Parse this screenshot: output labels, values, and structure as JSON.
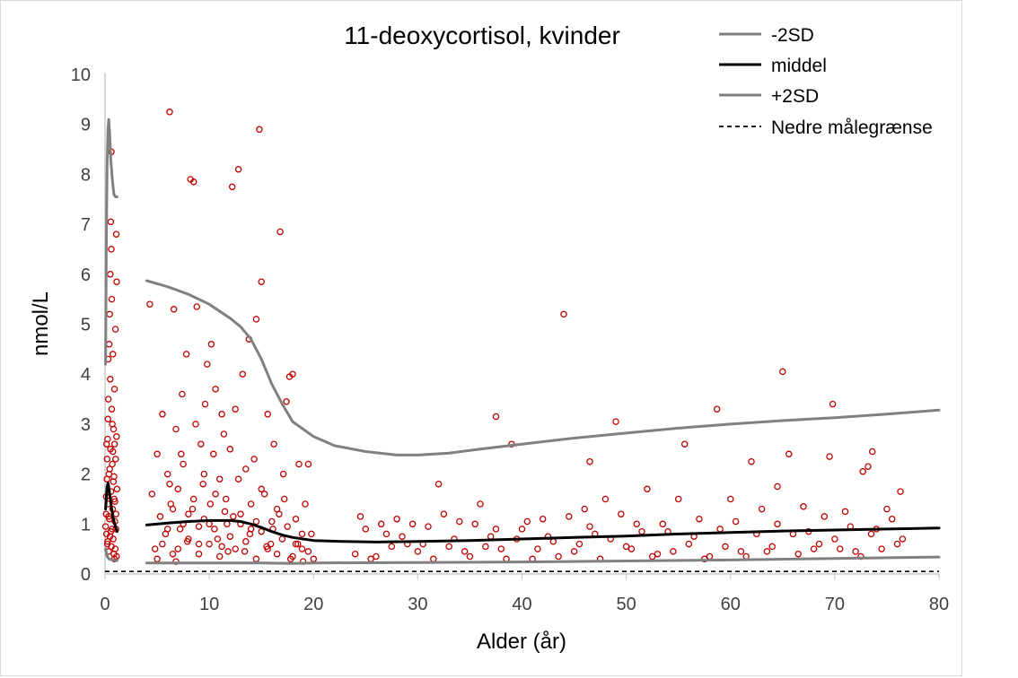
{
  "chart_data": {
    "type": "scatter",
    "title": "11-deoxycortisol, kvinder",
    "xlabel": "Alder (år)",
    "ylabel": "nmol/L",
    "xlim": [
      0,
      80
    ],
    "ylim": [
      0,
      10
    ],
    "x_ticks": [
      0,
      10,
      20,
      30,
      40,
      50,
      60,
      70,
      80
    ],
    "y_ticks": [
      0,
      1,
      2,
      3,
      4,
      5,
      6,
      7,
      8,
      9,
      10
    ],
    "legend": [
      {
        "name": "-2SD",
        "style": "solid",
        "color": "#808080"
      },
      {
        "name": "middel",
        "style": "solid",
        "color": "#000000"
      },
      {
        "name": "+2SD",
        "style": "solid",
        "color": "#808080"
      },
      {
        "name": "Nedre målegrænse",
        "style": "dashed",
        "color": "#000000"
      }
    ],
    "lines": {
      "upper_infant": [
        [
          0.05,
          4.2
        ],
        [
          0.12,
          6.5
        ],
        [
          0.2,
          8.2
        ],
        [
          0.28,
          8.9
        ],
        [
          0.35,
          9.1
        ],
        [
          0.45,
          8.8
        ],
        [
          0.55,
          8.3
        ],
        [
          0.7,
          7.9
        ],
        [
          0.85,
          7.6
        ],
        [
          1.0,
          7.55
        ],
        [
          1.15,
          7.55
        ]
      ],
      "upper_main": [
        [
          4,
          5.87
        ],
        [
          6,
          5.75
        ],
        [
          8,
          5.6
        ],
        [
          10,
          5.4
        ],
        [
          12,
          5.12
        ],
        [
          13,
          4.95
        ],
        [
          14,
          4.7
        ],
        [
          15,
          4.3
        ],
        [
          16,
          3.8
        ],
        [
          17,
          3.4
        ],
        [
          18,
          3.05
        ],
        [
          20,
          2.75
        ],
        [
          22,
          2.57
        ],
        [
          25,
          2.45
        ],
        [
          28,
          2.38
        ],
        [
          30,
          2.38
        ],
        [
          33,
          2.42
        ],
        [
          36,
          2.5
        ],
        [
          40,
          2.6
        ],
        [
          45,
          2.72
        ],
        [
          50,
          2.82
        ],
        [
          55,
          2.92
        ],
        [
          60,
          3.0
        ],
        [
          65,
          3.07
        ],
        [
          70,
          3.13
        ],
        [
          75,
          3.2
        ],
        [
          80,
          3.28
        ]
      ],
      "middle_infant": [
        [
          0.05,
          1.3
        ],
        [
          0.2,
          1.75
        ],
        [
          0.3,
          1.82
        ],
        [
          0.45,
          1.6
        ],
        [
          0.6,
          1.35
        ],
        [
          0.8,
          1.1
        ],
        [
          1.0,
          0.95
        ],
        [
          1.15,
          0.85
        ]
      ],
      "middle_main": [
        [
          4,
          0.98
        ],
        [
          6,
          1.02
        ],
        [
          8,
          1.05
        ],
        [
          10,
          1.07
        ],
        [
          12,
          1.07
        ],
        [
          13,
          1.05
        ],
        [
          14,
          1.0
        ],
        [
          15,
          0.93
        ],
        [
          16,
          0.85
        ],
        [
          17,
          0.78
        ],
        [
          18,
          0.73
        ],
        [
          20,
          0.67
        ],
        [
          23,
          0.65
        ],
        [
          26,
          0.64
        ],
        [
          30,
          0.65
        ],
        [
          35,
          0.67
        ],
        [
          40,
          0.7
        ],
        [
          45,
          0.73
        ],
        [
          50,
          0.76
        ],
        [
          55,
          0.8
        ],
        [
          60,
          0.83
        ],
        [
          65,
          0.86
        ],
        [
          70,
          0.88
        ],
        [
          75,
          0.9
        ],
        [
          80,
          0.92
        ]
      ],
      "lower_infant": [
        [
          0.05,
          0.5
        ],
        [
          0.2,
          0.35
        ],
        [
          0.4,
          0.3
        ],
        [
          0.7,
          0.28
        ],
        [
          1.0,
          0.27
        ],
        [
          1.15,
          0.27
        ]
      ],
      "lower_main": [
        [
          4,
          0.22
        ],
        [
          10,
          0.22
        ],
        [
          15,
          0.22
        ],
        [
          18,
          0.21
        ],
        [
          20,
          0.22
        ],
        [
          30,
          0.23
        ],
        [
          40,
          0.24
        ],
        [
          50,
          0.26
        ],
        [
          60,
          0.28
        ],
        [
          70,
          0.31
        ],
        [
          80,
          0.34
        ]
      ],
      "detection_limit": 0.05
    },
    "points": [
      [
        0.05,
        0.95
      ],
      [
        0.1,
        1.2
      ],
      [
        0.12,
        1.55
      ],
      [
        0.15,
        0.8
      ],
      [
        0.18,
        1.9
      ],
      [
        0.2,
        2.3
      ],
      [
        0.22,
        0.6
      ],
      [
        0.25,
        2.7
      ],
      [
        0.28,
        3.1
      ],
      [
        0.3,
        1.4
      ],
      [
        0.32,
        3.5
      ],
      [
        0.35,
        0.45
      ],
      [
        0.38,
        2.0
      ],
      [
        0.4,
        4.6
      ],
      [
        0.42,
        1.1
      ],
      [
        0.45,
        5.2
      ],
      [
        0.48,
        0.75
      ],
      [
        0.5,
        6.0
      ],
      [
        0.52,
        2.5
      ],
      [
        0.55,
        7.05
      ],
      [
        0.58,
        1.65
      ],
      [
        0.6,
        8.45
      ],
      [
        0.62,
        0.55
      ],
      [
        0.65,
        3.3
      ],
      [
        0.68,
        0.9
      ],
      [
        0.7,
        2.2
      ],
      [
        0.72,
        1.3
      ],
      [
        0.75,
        4.4
      ],
      [
        0.78,
        0.7
      ],
      [
        0.8,
        1.85
      ],
      [
        0.82,
        2.9
      ],
      [
        0.85,
        0.4
      ],
      [
        0.88,
        1.5
      ],
      [
        0.9,
        3.7
      ],
      [
        0.92,
        2.6
      ],
      [
        0.95,
        1.05
      ],
      [
        0.98,
        0.5
      ],
      [
        1.0,
        4.9
      ],
      [
        1.02,
        2.3
      ],
      [
        1.05,
        1.2
      ],
      [
        1.08,
        6.8
      ],
      [
        1.1,
        0.35
      ],
      [
        1.12,
        5.85
      ],
      [
        1.15,
        1.7
      ],
      [
        0.15,
        2.6
      ],
      [
        0.35,
        1.15
      ],
      [
        0.55,
        0.85
      ],
      [
        0.75,
        2.45
      ],
      [
        0.95,
        1.45
      ],
      [
        0.3,
        4.3
      ],
      [
        0.5,
        3.9
      ],
      [
        0.7,
        3.0
      ],
      [
        0.9,
        0.3
      ],
      [
        1.1,
        2.75
      ],
      [
        0.25,
        0.65
      ],
      [
        0.45,
        2.1
      ],
      [
        0.65,
        5.5
      ],
      [
        0.85,
        1.95
      ],
      [
        1.05,
        0.9
      ],
      [
        0.6,
        6.5
      ],
      [
        4.3,
        5.4
      ],
      [
        4.5,
        1.6
      ],
      [
        4.8,
        0.5
      ],
      [
        5.0,
        2.4
      ],
      [
        5.3,
        1.15
      ],
      [
        5.5,
        3.2
      ],
      [
        5.8,
        0.8
      ],
      [
        6.0,
        2.0
      ],
      [
        6.2,
        9.25
      ],
      [
        6.3,
        1.4
      ],
      [
        6.5,
        0.4
      ],
      [
        6.6,
        5.3
      ],
      [
        6.8,
        2.9
      ],
      [
        7.0,
        1.7
      ],
      [
        7.2,
        0.9
      ],
      [
        7.4,
        3.6
      ],
      [
        7.5,
        2.2
      ],
      [
        7.8,
        4.4
      ],
      [
        8.0,
        1.2
      ],
      [
        8.2,
        7.9
      ],
      [
        8.5,
        7.85
      ],
      [
        8.7,
        3.0
      ],
      [
        8.8,
        5.35
      ],
      [
        9.0,
        0.6
      ],
      [
        9.2,
        2.6
      ],
      [
        9.4,
        1.8
      ],
      [
        9.6,
        3.4
      ],
      [
        9.8,
        4.2
      ],
      [
        10.0,
        1.0
      ],
      [
        10.2,
        4.6
      ],
      [
        10.4,
        2.4
      ],
      [
        10.6,
        3.7
      ],
      [
        10.8,
        0.7
      ],
      [
        11.0,
        1.9
      ],
      [
        11.2,
        3.2
      ],
      [
        11.4,
        2.8
      ],
      [
        11.6,
        1.5
      ],
      [
        11.8,
        0.45
      ],
      [
        12.0,
        2.5
      ],
      [
        12.2,
        7.75
      ],
      [
        12.5,
        3.3
      ],
      [
        12.8,
        8.1
      ],
      [
        13.0,
        1.2
      ],
      [
        13.2,
        4.0
      ],
      [
        13.5,
        2.1
      ],
      [
        13.8,
        4.7
      ],
      [
        14.0,
        0.9
      ],
      [
        14.3,
        2.3
      ],
      [
        14.5,
        5.1
      ],
      [
        14.8,
        8.9
      ],
      [
        15.0,
        5.85
      ],
      [
        15.3,
        1.6
      ],
      [
        15.6,
        3.2
      ],
      [
        15.9,
        0.6
      ],
      [
        16.2,
        2.6
      ],
      [
        16.5,
        1.3
      ],
      [
        16.8,
        6.85
      ],
      [
        17.1,
        2.0
      ],
      [
        17.4,
        3.45
      ],
      [
        17.7,
        3.95
      ],
      [
        18.0,
        4.0
      ],
      [
        18.3,
        1.1
      ],
      [
        18.6,
        2.2
      ],
      [
        18.9,
        0.5
      ],
      [
        19.2,
        1.4
      ],
      [
        19.5,
        2.2
      ],
      [
        19.8,
        0.8
      ],
      [
        20.0,
        0.3
      ],
      [
        5.0,
        0.3
      ],
      [
        5.5,
        0.6
      ],
      [
        6.0,
        0.9
      ],
      [
        6.5,
        1.3
      ],
      [
        7.0,
        0.5
      ],
      [
        7.5,
        1.0
      ],
      [
        8.0,
        0.7
      ],
      [
        8.5,
        1.5
      ],
      [
        9.0,
        0.4
      ],
      [
        9.5,
        1.1
      ],
      [
        10.0,
        0.6
      ],
      [
        10.5,
        0.9
      ],
      [
        11.0,
        0.35
      ],
      [
        11.5,
        1.25
      ],
      [
        12.0,
        0.75
      ],
      [
        12.5,
        0.5
      ],
      [
        13.0,
        1.0
      ],
      [
        13.5,
        0.65
      ],
      [
        14.0,
        1.4
      ],
      [
        14.5,
        0.3
      ],
      [
        15.0,
        0.85
      ],
      [
        15.5,
        0.55
      ],
      [
        16.0,
        1.05
      ],
      [
        16.5,
        0.4
      ],
      [
        17.0,
        0.7
      ],
      [
        17.5,
        0.95
      ],
      [
        18.0,
        0.35
      ],
      [
        18.5,
        0.6
      ],
      [
        19.0,
        0.25
      ],
      [
        19.5,
        0.45
      ],
      [
        6.2,
        1.8
      ],
      [
        7.3,
        2.4
      ],
      [
        8.4,
        1.3
      ],
      [
        9.5,
        2.0
      ],
      [
        10.6,
        1.6
      ],
      [
        11.7,
        1.0
      ],
      [
        12.8,
        1.9
      ],
      [
        13.9,
        0.8
      ],
      [
        15.0,
        1.7
      ],
      [
        16.1,
        0.9
      ],
      [
        17.2,
        1.5
      ],
      [
        18.3,
        0.6
      ],
      [
        6.8,
        0.25
      ],
      [
        7.9,
        0.65
      ],
      [
        9.0,
        0.95
      ],
      [
        10.1,
        1.4
      ],
      [
        11.2,
        0.55
      ],
      [
        12.3,
        1.15
      ],
      [
        13.4,
        0.45
      ],
      [
        14.5,
        1.05
      ],
      [
        15.6,
        0.5
      ],
      [
        16.7,
        1.2
      ],
      [
        17.8,
        0.3
      ],
      [
        18.9,
        0.8
      ],
      [
        24,
        0.4
      ],
      [
        25,
        0.9
      ],
      [
        26,
        0.35
      ],
      [
        27,
        0.8
      ],
      [
        28,
        1.1
      ],
      [
        29,
        0.6
      ],
      [
        30,
        0.45
      ],
      [
        31,
        0.95
      ],
      [
        32,
        1.8
      ],
      [
        33,
        0.55
      ],
      [
        34,
        1.05
      ],
      [
        35,
        0.35
      ],
      [
        36,
        1.4
      ],
      [
        37,
        0.75
      ],
      [
        37.5,
        3.15
      ],
      [
        38,
        0.5
      ],
      [
        39,
        2.6
      ],
      [
        40,
        0.9
      ],
      [
        41,
        0.3
      ],
      [
        42,
        1.1
      ],
      [
        43,
        0.65
      ],
      [
        44,
        5.2
      ],
      [
        45,
        0.45
      ],
      [
        46,
        1.3
      ],
      [
        46.5,
        2.25
      ],
      [
        47,
        0.8
      ],
      [
        48,
        1.5
      ],
      [
        49,
        3.05
      ],
      [
        50,
        0.55
      ],
      [
        51,
        1.0
      ],
      [
        52,
        1.7
      ],
      [
        53,
        0.4
      ],
      [
        54,
        0.85
      ],
      [
        55,
        1.5
      ],
      [
        55.6,
        2.6
      ],
      [
        56,
        0.6
      ],
      [
        57,
        1.1
      ],
      [
        58,
        0.35
      ],
      [
        58.7,
        3.3
      ],
      [
        59,
        0.9
      ],
      [
        60,
        1.5
      ],
      [
        61,
        0.45
      ],
      [
        62,
        2.25
      ],
      [
        63,
        1.3
      ],
      [
        64,
        0.55
      ],
      [
        64.5,
        1.75
      ],
      [
        65,
        4.05
      ],
      [
        65.6,
        2.4
      ],
      [
        66,
        0.8
      ],
      [
        67,
        1.35
      ],
      [
        68,
        0.5
      ],
      [
        69,
        1.15
      ],
      [
        69.5,
        2.35
      ],
      [
        69.8,
        3.4
      ],
      [
        70,
        0.7
      ],
      [
        71,
        1.25
      ],
      [
        72,
        0.45
      ],
      [
        72.7,
        2.05
      ],
      [
        73.2,
        2.15
      ],
      [
        73.6,
        2.45
      ],
      [
        74,
        0.9
      ],
      [
        75,
        1.3
      ],
      [
        76,
        0.6
      ],
      [
        76.3,
        1.65
      ],
      [
        24.5,
        1.15
      ],
      [
        25.5,
        0.3
      ],
      [
        26.5,
        1.0
      ],
      [
        27.5,
        0.55
      ],
      [
        28.5,
        0.75
      ],
      [
        29.5,
        1.0
      ],
      [
        30.5,
        0.6
      ],
      [
        31.5,
        0.3
      ],
      [
        32.5,
        1.2
      ],
      [
        33.5,
        0.7
      ],
      [
        34.5,
        0.45
      ],
      [
        35.5,
        1.0
      ],
      [
        36.5,
        0.55
      ],
      [
        37.5,
        0.9
      ],
      [
        38.5,
        0.3
      ],
      [
        39.5,
        0.7
      ],
      [
        40.5,
        1.05
      ],
      [
        41.5,
        0.5
      ],
      [
        42.5,
        0.75
      ],
      [
        43.5,
        0.35
      ],
      [
        44.5,
        1.15
      ],
      [
        45.5,
        0.6
      ],
      [
        46.5,
        0.95
      ],
      [
        47.5,
        0.3
      ],
      [
        48.5,
        0.7
      ],
      [
        49.5,
        1.2
      ],
      [
        50.5,
        0.5
      ],
      [
        51.5,
        0.85
      ],
      [
        52.5,
        0.35
      ],
      [
        53.5,
        1.0
      ],
      [
        54.5,
        0.45
      ],
      [
        56.5,
        0.75
      ],
      [
        57.5,
        0.3
      ],
      [
        59.5,
        0.55
      ],
      [
        60.5,
        1.05
      ],
      [
        61.5,
        0.35
      ],
      [
        62.5,
        0.8
      ],
      [
        63.5,
        0.45
      ],
      [
        64.5,
        1.0
      ],
      [
        66.5,
        0.4
      ],
      [
        67.5,
        0.85
      ],
      [
        68.5,
        0.6
      ],
      [
        70.5,
        0.5
      ],
      [
        71.5,
        0.95
      ],
      [
        72.5,
        0.35
      ],
      [
        73.5,
        0.8
      ],
      [
        74.5,
        0.5
      ],
      [
        75.5,
        1.1
      ],
      [
        76.5,
        0.7
      ]
    ]
  }
}
